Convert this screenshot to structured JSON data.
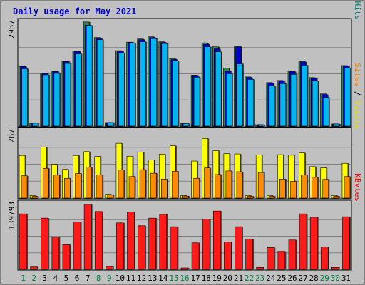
{
  "chart_data": {
    "type": "bar",
    "title": "Daily usage for May 2021",
    "categories": [
      "1",
      "2",
      "3",
      "4",
      "5",
      "6",
      "7",
      "8",
      "9",
      "10",
      "11",
      "12",
      "13",
      "14",
      "15",
      "16",
      "17",
      "18",
      "19",
      "20",
      "21",
      "22",
      "23",
      "24",
      "25",
      "26",
      "27",
      "28",
      "29",
      "30",
      "31"
    ],
    "weekend_days": [
      "1",
      "2",
      "8",
      "9",
      "15",
      "16",
      "22",
      "23",
      "29",
      "30"
    ],
    "panels": [
      {
        "id": "hits",
        "max_label": "2957",
        "ylim": [
          0,
          2957
        ],
        "right_label_parts": [
          {
            "text": "Pages",
            "color": "#00c0ff"
          },
          {
            "text": " / ",
            "color": "#000000"
          },
          {
            "text": "Files",
            "color": "#0000c0"
          },
          {
            "text": " / ",
            "color": "#000000"
          },
          {
            "text": "Hits",
            "color": "#008080"
          }
        ],
        "series": [
          {
            "name": "Hits",
            "color": "#2e8b57",
            "values": [
              1690,
              80,
              1500,
              1550,
              1830,
              2120,
              2940,
              2500,
              100,
              2130,
              2370,
              2460,
              2520,
              2380,
              1910,
              70,
              1440,
              2350,
              2240,
              1640,
              2260,
              1390,
              40,
              1230,
              1290,
              1560,
              1830,
              1370,
              910,
              60,
              1710
            ]
          },
          {
            "name": "Files",
            "color": "#0000cc",
            "values": [
              1680,
              80,
              1490,
              1540,
              1820,
              2110,
              2850,
              2480,
              100,
              2120,
              2360,
              2440,
              2500,
              2360,
              1880,
              70,
              1430,
              2310,
              2180,
              1550,
              2240,
              1370,
              40,
              1220,
              1280,
              1540,
              1810,
              1350,
              890,
              60,
              1700
            ]
          },
          {
            "name": "Pages",
            "color": "#00b6f0",
            "values": [
              1620,
              80,
              1450,
              1490,
              1770,
              2040,
              2840,
              2440,
              100,
              2070,
              2340,
              2380,
              2470,
              2330,
              1840,
              70,
              1380,
              2240,
              2100,
              1480,
              1760,
              1320,
              40,
              1140,
              1200,
              1460,
              1720,
              1280,
              810,
              60,
              1640
            ]
          }
        ]
      },
      {
        "id": "visits",
        "max_label": "267",
        "ylim": [
          0,
          267
        ],
        "right_label_parts": [
          {
            "text": "Sites",
            "color": "#ff8000"
          },
          {
            "text": " / ",
            "color": "#000000"
          },
          {
            "text": "Visits",
            "color": "#e0e000"
          }
        ],
        "series": [
          {
            "name": "Visits",
            "color": "#ffff00",
            "values": [
              168,
              10,
              201,
              133,
              113,
              168,
              183,
              164,
              15,
              216,
              165,
              181,
              150,
              173,
              206,
              10,
              146,
              235,
              187,
              175,
              174,
              10,
              170,
              10,
              171,
              169,
              178,
              124,
              119,
              10,
              137
            ]
          },
          {
            "name": "Sites",
            "color": "#ff8c00",
            "values": [
              88,
              7,
              117,
              91,
              78,
              97,
              122,
              92,
              12,
              111,
              85,
              112,
              98,
              75,
              106,
              8,
              78,
              119,
              93,
              107,
              104,
              7,
              101,
              7,
              75,
              66,
              92,
              82,
              74,
              7,
              85
            ]
          }
        ]
      },
      {
        "id": "kbytes",
        "max_label": "139793",
        "ylim": [
          0,
          139793
        ],
        "right_label_parts": [
          {
            "text": "KBytes",
            "color": "#ff0000"
          }
        ],
        "series": [
          {
            "name": "KBytes",
            "color": "#ff1a1a",
            "values": [
              117000,
              5000,
              108000,
              68000,
              52000,
              100000,
              137000,
              122000,
              6000,
              98000,
              121000,
              92000,
              108000,
              116000,
              90000,
              3000,
              56000,
              106000,
              123000,
              58000,
              90000,
              64000,
              4000,
              46000,
              38000,
              62000,
              117000,
              110000,
              47000,
              4000,
              111000
            ]
          }
        ]
      }
    ]
  }
}
